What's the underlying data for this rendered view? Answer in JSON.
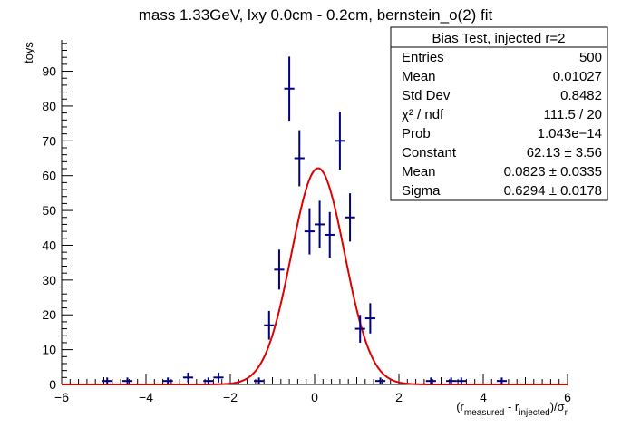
{
  "chart_data": {
    "type": "scatter",
    "title": "mass 1.33GeV, lxy 0.0cm - 0.2cm, bernstein_o(2) fit",
    "ylabel": "toys",
    "xlabel": {
      "prefix": "(r",
      "sub1": "measured",
      "mid": " - r",
      "sub2": "injected",
      "suffix": ")/σ",
      "sub3": "r"
    },
    "xlim": [
      -6,
      6
    ],
    "ylim": [
      0,
      99
    ],
    "x_ticks": [
      -6,
      -4,
      -2,
      0,
      2,
      4,
      6
    ],
    "y_ticks": [
      0,
      10,
      20,
      30,
      40,
      50,
      60,
      70,
      80,
      90
    ],
    "bin_width": 0.24,
    "series": [
      {
        "style": "data-points-with-errors",
        "color": "#000080",
        "points": [
          {
            "x": -4.92,
            "y": 1
          },
          {
            "x": -4.44,
            "y": 1
          },
          {
            "x": -3.48,
            "y": 1
          },
          {
            "x": -3.0,
            "y": 2
          },
          {
            "x": -2.52,
            "y": 1
          },
          {
            "x": -2.28,
            "y": 2
          },
          {
            "x": -1.32,
            "y": 1
          },
          {
            "x": -1.08,
            "y": 17
          },
          {
            "x": -0.84,
            "y": 33
          },
          {
            "x": -0.6,
            "y": 85
          },
          {
            "x": -0.36,
            "y": 65
          },
          {
            "x": -0.12,
            "y": 44
          },
          {
            "x": 0.12,
            "y": 46
          },
          {
            "x": 0.36,
            "y": 43
          },
          {
            "x": 0.6,
            "y": 70
          },
          {
            "x": 0.84,
            "y": 48
          },
          {
            "x": 1.08,
            "y": 16
          },
          {
            "x": 1.32,
            "y": 19
          },
          {
            "x": 1.56,
            "y": 1
          },
          {
            "x": 2.76,
            "y": 1
          },
          {
            "x": 3.24,
            "y": 1
          },
          {
            "x": 3.48,
            "y": 1
          },
          {
            "x": 4.44,
            "y": 1
          }
        ]
      },
      {
        "style": "gaussian-fit",
        "color": "#e00000",
        "constant": 62.13,
        "mean": 0.0823,
        "sigma": 0.6294
      }
    ],
    "stats_box": {
      "title": "Bias Test, injected r=2",
      "rows": [
        {
          "label": "Entries",
          "value": "500"
        },
        {
          "label": "Mean",
          "value": "0.01027"
        },
        {
          "label": "Std Dev",
          "value": "0.8482"
        },
        {
          "label": "χ² / ndf",
          "value": "111.5 / 20"
        },
        {
          "label": "Prob",
          "value": "1.043e−14"
        },
        {
          "label": "Constant",
          "value": "62.13 ± 3.56"
        },
        {
          "label": "Mean",
          "value": "0.0823 ± 0.0335"
        },
        {
          "label": "Sigma",
          "value": "0.6294 ± 0.0178"
        }
      ],
      "placement": "top-right"
    },
    "grid": false
  }
}
